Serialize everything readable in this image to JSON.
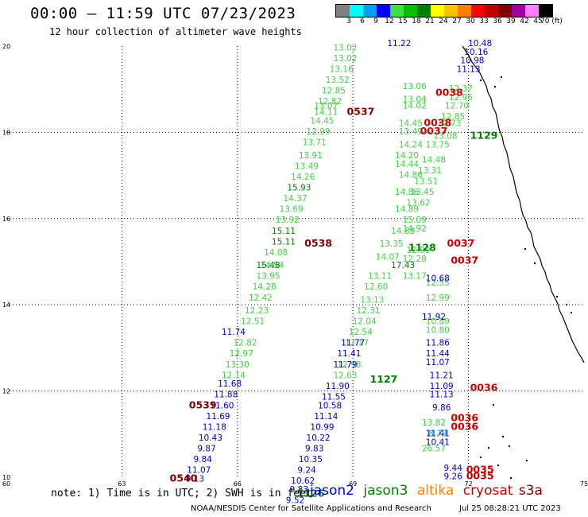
{
  "header": {
    "title": "00:00 — 11:59 UTC 07/23/2023",
    "subtitle": "12 hour collection of altimeter wave heights"
  },
  "color_scale": {
    "labels": [
      "3",
      "6",
      "9",
      "12",
      "15",
      "18",
      "21",
      "24",
      "27",
      "30",
      "33",
      "36",
      "39",
      "42",
      "45",
      "70 (ft)"
    ],
    "colors": [
      "#808080",
      "#00ffff",
      "#00a0ff",
      "#0000ff",
      "#40e040",
      "#00c000",
      "#008000",
      "#ffff00",
      "#ffc000",
      "#ff8000",
      "#ff0000",
      "#c00000",
      "#800000",
      "#a000a0",
      "#ff80ff",
      "#000000"
    ]
  },
  "axes": {
    "x_ticks": [
      "60",
      "63",
      "66",
      "69",
      "72",
      "75"
    ],
    "y_ticks": [
      "20",
      "18",
      "16",
      "14",
      "12",
      "10"
    ]
  },
  "chart_data": {
    "type": "scatter",
    "title": "00:00 — 11:59 UTC 07/23/2023",
    "x_range": [
      60,
      75
    ],
    "y_range": [
      10,
      20
    ],
    "x_ticks": [
      "60",
      "63",
      "66",
      "69",
      "72",
      "75"
    ],
    "y_ticks": [
      "20",
      "18",
      "16",
      "14",
      "12",
      "10"
    ],
    "grid": true,
    "series": [
      {
        "name": "jason3",
        "color": "#40d040",
        "points": [
          {
            "x": 68.8,
            "y": 19.9,
            "v": "13.02"
          },
          {
            "x": 68.8,
            "y": 19.65,
            "v": "13.02"
          },
          {
            "x": 68.7,
            "y": 19.4,
            "v": "13.16"
          },
          {
            "x": 68.6,
            "y": 19.15,
            "v": "13.52"
          },
          {
            "x": 68.5,
            "y": 18.9,
            "v": "12.85"
          },
          {
            "x": 68.4,
            "y": 18.65,
            "v": "12.82"
          },
          {
            "x": 68.3,
            "y": 18.55,
            "v": "13.07"
          },
          {
            "x": 68.3,
            "y": 18.4,
            "v": "14.11"
          },
          {
            "x": 68.2,
            "y": 18.2,
            "v": "14.45"
          },
          {
            "x": 68.1,
            "y": 17.95,
            "v": "12.99"
          },
          {
            "x": 68.0,
            "y": 17.7,
            "v": "13.71"
          },
          {
            "x": 67.9,
            "y": 17.4,
            "v": "13.91"
          },
          {
            "x": 67.8,
            "y": 17.15,
            "v": "13.49"
          },
          {
            "x": 67.7,
            "y": 16.9,
            "v": "14.26"
          },
          {
            "x": 67.5,
            "y": 16.4,
            "v": "14.37"
          },
          {
            "x": 67.4,
            "y": 16.15,
            "v": "13.69"
          },
          {
            "x": 67.3,
            "y": 15.9,
            "v": "13.92"
          },
          {
            "x": 67.0,
            "y": 15.15,
            "v": "14.08"
          },
          {
            "x": 66.9,
            "y": 14.85,
            "v": "14.54"
          },
          {
            "x": 66.8,
            "y": 14.6,
            "v": "13.95"
          },
          {
            "x": 66.7,
            "y": 14.35,
            "v": "14.28"
          },
          {
            "x": 66.6,
            "y": 14.1,
            "v": "12.42"
          },
          {
            "x": 66.5,
            "y": 13.8,
            "v": "12.23"
          },
          {
            "x": 66.4,
            "y": 13.55,
            "v": "12.51"
          },
          {
            "x": 66.2,
            "y": 13.05,
            "v": "12.82"
          },
          {
            "x": 66.1,
            "y": 12.8,
            "v": "12.97"
          },
          {
            "x": 66.0,
            "y": 12.55,
            "v": "13.30"
          },
          {
            "x": 65.9,
            "y": 12.3,
            "v": "12.14"
          },
          {
            "x": 70.6,
            "y": 19.0,
            "v": "13.06"
          },
          {
            "x": 70.6,
            "y": 18.7,
            "v": "13.04"
          },
          {
            "x": 70.6,
            "y": 18.55,
            "v": "14.02"
          },
          {
            "x": 70.5,
            "y": 18.15,
            "v": "14.45"
          },
          {
            "x": 70.5,
            "y": 17.95,
            "v": "13.49"
          },
          {
            "x": 70.5,
            "y": 17.65,
            "v": "14.24"
          },
          {
            "x": 70.4,
            "y": 17.4,
            "v": "14.20"
          },
          {
            "x": 70.4,
            "y": 17.2,
            "v": "14.44"
          },
          {
            "x": 70.5,
            "y": 16.95,
            "v": "14.86"
          },
          {
            "x": 70.4,
            "y": 16.55,
            "v": "14.86"
          },
          {
            "x": 70.4,
            "y": 16.15,
            "v": "14.89"
          },
          {
            "x": 70.3,
            "y": 15.65,
            "v": "14.68"
          },
          {
            "x": 70.0,
            "y": 15.35,
            "v": "13.35"
          },
          {
            "x": 69.9,
            "y": 15.05,
            "v": "14.07"
          },
          {
            "x": 69.7,
            "y": 14.6,
            "v": "13.11"
          },
          {
            "x": 69.6,
            "y": 14.35,
            "v": "12.60"
          },
          {
            "x": 69.5,
            "y": 14.05,
            "v": "13.13"
          },
          {
            "x": 69.4,
            "y": 13.8,
            "v": "12.31"
          },
          {
            "x": 69.3,
            "y": 13.55,
            "v": "12.04"
          },
          {
            "x": 69.2,
            "y": 13.3,
            "v": "12.54"
          },
          {
            "x": 69.1,
            "y": 13.05,
            "v": "12.17"
          },
          {
            "x": 68.9,
            "y": 12.55,
            "v": "12.98"
          },
          {
            "x": 68.8,
            "y": 12.3,
            "v": "12.63"
          },
          {
            "x": 71.8,
            "y": 18.95,
            "v": "12.37"
          },
          {
            "x": 71.8,
            "y": 18.75,
            "v": "12.96"
          },
          {
            "x": 71.7,
            "y": 18.55,
            "v": "12.70"
          },
          {
            "x": 71.6,
            "y": 18.3,
            "v": "12.85"
          },
          {
            "x": 71.5,
            "y": 18.15,
            "v": "12.73"
          },
          {
            "x": 71.4,
            "y": 17.85,
            "v": "13.08"
          },
          {
            "x": 71.2,
            "y": 17.65,
            "v": "13.75"
          },
          {
            "x": 71.1,
            "y": 17.3,
            "v": "14.48"
          },
          {
            "x": 71.0,
            "y": 17.05,
            "v": "13.31"
          },
          {
            "x": 70.9,
            "y": 16.8,
            "v": "13.51"
          },
          {
            "x": 70.8,
            "y": 16.55,
            "v": "13.45"
          },
          {
            "x": 70.7,
            "y": 16.3,
            "v": "13.62"
          },
          {
            "x": 70.6,
            "y": 15.9,
            "v": "15.09"
          },
          {
            "x": 70.6,
            "y": 15.7,
            "v": "14.92"
          },
          {
            "x": 70.7,
            "y": 15.2,
            "v": "12.99"
          },
          {
            "x": 70.6,
            "y": 15.0,
            "v": "12.28"
          },
          {
            "x": 70.6,
            "y": 14.6,
            "v": "13.17"
          },
          {
            "x": 71.2,
            "y": 14.45,
            "v": "12.55"
          },
          {
            "x": 71.2,
            "y": 14.1,
            "v": "12.99"
          },
          {
            "x": 71.2,
            "y": 13.55,
            "v": "10.89"
          },
          {
            "x": 71.2,
            "y": 13.35,
            "v": "10.80"
          },
          {
            "x": 71.1,
            "y": 11.2,
            "v": "13.82"
          },
          {
            "x": 71.1,
            "y": 10.6,
            "v": "26.57"
          }
        ]
      },
      {
        "name": "jason3 (high)",
        "color": "#008000",
        "points": [
          {
            "x": 67.6,
            "y": 16.65,
            "v": "15.93"
          },
          {
            "x": 67.2,
            "y": 15.65,
            "v": "15.11"
          },
          {
            "x": 67.2,
            "y": 15.4,
            "v": "15.11"
          },
          {
            "x": 66.8,
            "y": 14.85,
            "v": "15.48"
          },
          {
            "x": 70.3,
            "y": 14.85,
            "v": "17.43"
          }
        ]
      },
      {
        "name": "jason2",
        "color": "#0000cc",
        "points": [
          {
            "x": 70.2,
            "y": 20.0,
            "v": "11.22"
          },
          {
            "x": 72.3,
            "y": 20.0,
            "v": "10.48"
          },
          {
            "x": 72.2,
            "y": 19.8,
            "v": "10.16"
          },
          {
            "x": 72.1,
            "y": 19.6,
            "v": "10.98"
          },
          {
            "x": 72.0,
            "y": 19.4,
            "v": "11.13"
          },
          {
            "x": 65.9,
            "y": 13.3,
            "v": "11.74"
          },
          {
            "x": 65.8,
            "y": 12.1,
            "v": "11.68"
          },
          {
            "x": 65.7,
            "y": 11.85,
            "v": "11.88"
          },
          {
            "x": 65.6,
            "y": 11.6,
            "v": "11.60"
          },
          {
            "x": 65.5,
            "y": 11.35,
            "v": "11.69"
          },
          {
            "x": 65.4,
            "y": 11.1,
            "v": "11.18"
          },
          {
            "x": 65.3,
            "y": 10.85,
            "v": "10.43"
          },
          {
            "x": 65.2,
            "y": 10.6,
            "v": "9.87"
          },
          {
            "x": 65.1,
            "y": 10.35,
            "v": "9.84"
          },
          {
            "x": 65.0,
            "y": 10.1,
            "v": "11.07"
          },
          {
            "x": 64.9,
            "y": 9.9,
            "v": "9.13"
          },
          {
            "x": 69.0,
            "y": 13.05,
            "v": "11.77"
          },
          {
            "x": 68.9,
            "y": 12.8,
            "v": "11.41"
          },
          {
            "x": 68.8,
            "y": 12.55,
            "v": "11.79"
          },
          {
            "x": 68.6,
            "y": 12.05,
            "v": "11.90"
          },
          {
            "x": 68.5,
            "y": 11.8,
            "v": "11.55"
          },
          {
            "x": 68.4,
            "y": 11.6,
            "v": "10.58"
          },
          {
            "x": 68.3,
            "y": 11.35,
            "v": "11.14"
          },
          {
            "x": 68.2,
            "y": 11.1,
            "v": "10.99"
          },
          {
            "x": 68.1,
            "y": 10.85,
            "v": "10.22"
          },
          {
            "x": 68.0,
            "y": 10.6,
            "v": "9.83"
          },
          {
            "x": 67.9,
            "y": 10.35,
            "v": "10.35"
          },
          {
            "x": 67.8,
            "y": 10.1,
            "v": "9.24"
          },
          {
            "x": 67.7,
            "y": 9.85,
            "v": "10.62"
          },
          {
            "x": 67.6,
            "y": 9.65,
            "v": "9.83"
          },
          {
            "x": 67.5,
            "y": 9.4,
            "v": "9.52"
          },
          {
            "x": 71.2,
            "y": 14.55,
            "v": "10.68"
          },
          {
            "x": 71.1,
            "y": 13.65,
            "v": "11.92"
          },
          {
            "x": 71.2,
            "y": 13.05,
            "v": "11.86"
          },
          {
            "x": 71.2,
            "y": 12.8,
            "v": "11.44"
          },
          {
            "x": 71.2,
            "y": 12.6,
            "v": "11.07"
          },
          {
            "x": 71.3,
            "y": 12.3,
            "v": "11.21"
          },
          {
            "x": 71.3,
            "y": 12.05,
            "v": "11.09"
          },
          {
            "x": 71.3,
            "y": 11.85,
            "v": "11.13"
          },
          {
            "x": 71.3,
            "y": 11.55,
            "v": "9.86"
          },
          {
            "x": 71.2,
            "y": 10.95,
            "v": "11.41"
          },
          {
            "x": 71.2,
            "y": 10.75,
            "v": "10.41"
          },
          {
            "x": 71.6,
            "y": 10.15,
            "v": "9.44"
          },
          {
            "x": 71.6,
            "y": 9.95,
            "v": "9.26"
          }
        ]
      },
      {
        "name": "jason2 (cyan)",
        "color": "#00a0c8",
        "points": [
          {
            "x": 71.2,
            "y": 10.95,
            "v": "8.79"
          }
        ]
      },
      {
        "name": "cryosat",
        "color": "#cc0000",
        "points": [
          {
            "x": 71.5,
            "y": 18.85,
            "v": "0038"
          },
          {
            "x": 71.2,
            "y": 18.15,
            "v": "0038"
          },
          {
            "x": 71.1,
            "y": 17.95,
            "v": "0037"
          },
          {
            "x": 71.8,
            "y": 15.35,
            "v": "0037"
          },
          {
            "x": 71.9,
            "y": 14.95,
            "v": "0037"
          },
          {
            "x": 72.4,
            "y": 12.0,
            "v": "0036"
          },
          {
            "x": 71.9,
            "y": 11.3,
            "v": "0036"
          },
          {
            "x": 71.9,
            "y": 11.1,
            "v": "0036"
          },
          {
            "x": 72.3,
            "y": 10.1,
            "v": "0035"
          },
          {
            "x": 72.3,
            "y": 9.95,
            "v": "0035"
          }
        ]
      },
      {
        "name": "time-markers",
        "color": "#800000",
        "points": [
          {
            "x": 69.2,
            "y": 18.4,
            "v": "0537"
          },
          {
            "x": 68.1,
            "y": 15.35,
            "v": "0538"
          },
          {
            "x": 65.1,
            "y": 11.6,
            "v": "0539"
          },
          {
            "x": 64.6,
            "y": 9.9,
            "v": "0540"
          }
        ]
      },
      {
        "name": "time-markers-jason3",
        "color": "#008000",
        "points": [
          {
            "x": 72.4,
            "y": 17.85,
            "v": "1129"
          },
          {
            "x": 70.8,
            "y": 15.25,
            "v": "1128"
          },
          {
            "x": 69.8,
            "y": 12.2,
            "v": "1127"
          },
          {
            "x": 67.9,
            "y": 9.55,
            "v": "1126"
          }
        ]
      }
    ]
  },
  "footer": {
    "note": "note: 1) Time is in UTC; 2) SWH is in feet",
    "legend": [
      {
        "label": "jason2",
        "color": "#0000cc"
      },
      {
        "label": "jason3",
        "color": "#008000"
      },
      {
        "label": "altika",
        "color": "#ff8000"
      },
      {
        "label": "cryosat",
        "color": "#cc0000"
      },
      {
        "label": "s3a",
        "color": "#800000"
      }
    ],
    "credit": "NOAA/NESDIS Center for Satellite Applications and Research",
    "timestamp": "Jul 25 08:28:21 UTC 2023"
  }
}
